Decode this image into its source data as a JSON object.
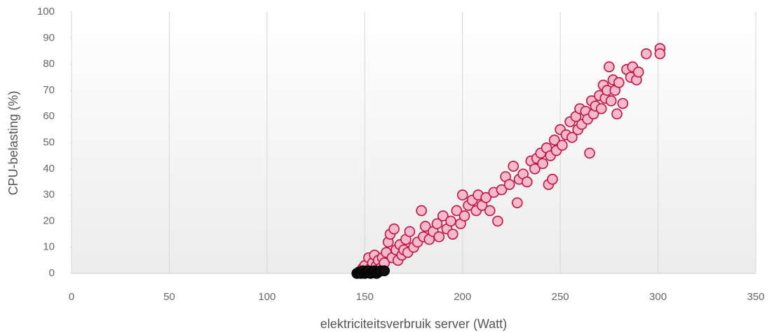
{
  "chart_data": {
    "type": "scatter",
    "xlabel": "elektriciteitsverbruik server (Watt)",
    "ylabel": "CPU-belasting (%)",
    "xlim": [
      0,
      350
    ],
    "xticks": [
      0,
      50,
      100,
      150,
      200,
      250,
      300,
      350
    ],
    "ylim": [
      0,
      100
    ],
    "yticks": [
      0,
      10,
      20,
      30,
      40,
      50,
      60,
      70,
      80,
      90,
      100
    ],
    "grid": true,
    "series": [
      {
        "color": "#f7b9cb",
        "x": [
          148,
          149,
          150,
          151,
          152,
          153,
          154,
          155,
          156,
          157,
          158,
          159,
          160,
          161,
          162,
          163,
          164,
          165,
          166,
          167,
          168,
          169,
          170,
          171,
          172,
          173,
          175,
          177,
          179,
          180,
          181,
          183,
          185,
          187,
          188,
          190,
          192,
          194,
          195,
          197,
          199,
          200,
          201,
          203,
          205,
          207,
          208,
          210,
          212,
          214,
          216,
          218,
          220,
          222,
          224,
          226,
          228,
          229,
          231,
          233,
          235,
          237,
          238,
          240,
          241,
          243,
          244,
          245,
          246,
          247,
          248,
          250,
          251,
          253,
          255,
          256,
          258,
          259,
          260,
          261,
          263,
          264,
          265,
          266,
          267,
          268,
          270,
          271,
          272,
          273,
          274,
          275,
          276,
          277,
          278,
          279,
          280,
          282,
          284,
          286,
          287,
          289,
          290,
          294,
          301,
          301
        ],
        "values": [
          1,
          2,
          3,
          1,
          6,
          2,
          4,
          7,
          3,
          5,
          2,
          6,
          4,
          8,
          12,
          15,
          6,
          17,
          9,
          5,
          11,
          7,
          9,
          13,
          8,
          16,
          10,
          12,
          24,
          14,
          18,
          13,
          16,
          19,
          14,
          22,
          17,
          20,
          15,
          24,
          19,
          30,
          22,
          26,
          28,
          24,
          30,
          26,
          29,
          24,
          31,
          20,
          32,
          37,
          34,
          41,
          27,
          36,
          38,
          35,
          43,
          40,
          44,
          46,
          42,
          48,
          34,
          45,
          36,
          51,
          47,
          55,
          49,
          53,
          58,
          52,
          60,
          55,
          63,
          57,
          62,
          59,
          46,
          66,
          61,
          64,
          68,
          63,
          72,
          67,
          70,
          79,
          66,
          74,
          70,
          61,
          73,
          65,
          78,
          75,
          79,
          74,
          77,
          84,
          86,
          84
        ]
      },
      {
        "color": "#111111",
        "x": [
          146,
          147,
          148,
          149,
          150,
          151,
          152,
          153,
          154,
          155,
          156,
          157,
          158,
          160
        ],
        "values": [
          0,
          0.5,
          0,
          1,
          0,
          0.5,
          1,
          0,
          0.5,
          1,
          0,
          0.5,
          1,
          1
        ]
      }
    ]
  }
}
